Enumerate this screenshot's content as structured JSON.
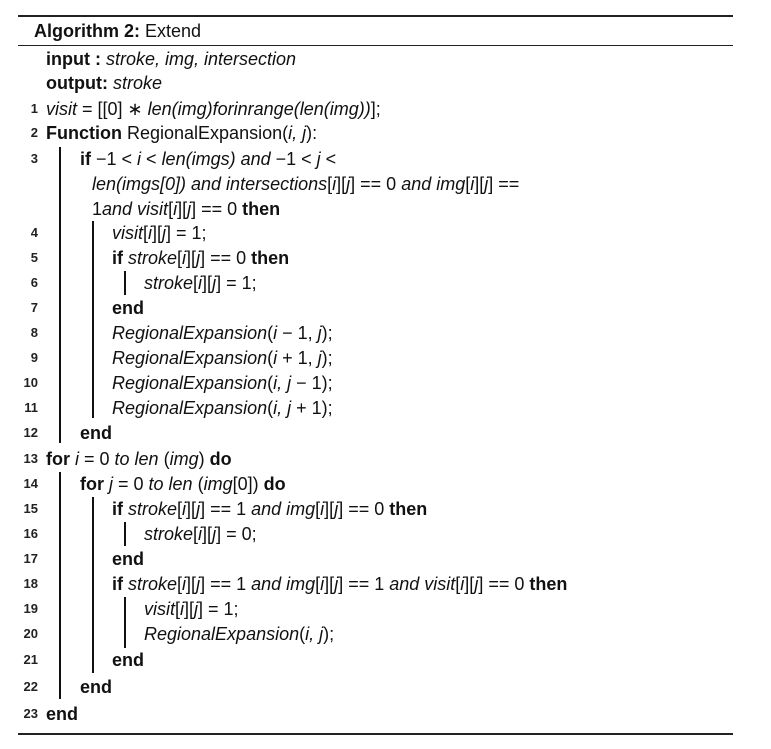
{
  "header": {
    "algorithm": "Algorithm 2:",
    "name": "Extend"
  },
  "io": {
    "input_kw": "input",
    "input_sep": " :",
    "input_val": "stroke, img, intersection",
    "output_kw": "output:",
    "output_val": "stroke"
  },
  "lines": [
    {
      "num": "1",
      "tokens": [
        [
          "i",
          "visit"
        ],
        [
          "n",
          " = [[0] ∗ "
        ],
        [
          "i",
          "len(img)for"
        ],
        [
          "i",
          "inrange(len(img))"
        ],
        [
          "n",
          "];"
        ]
      ]
    },
    {
      "num": "2",
      "tokens": [
        [
          "b",
          "Function "
        ],
        [
          "n",
          "RegionalExpansion("
        ],
        [
          "i",
          "i, j"
        ],
        [
          "n",
          "):"
        ]
      ]
    },
    {
      "num": "3",
      "tokens": [
        [
          "b",
          "if "
        ],
        [
          "n",
          "−1 < "
        ],
        [
          "i",
          "i"
        ],
        [
          "n",
          " < "
        ],
        [
          "i",
          "len(imgs) and "
        ],
        [
          "n",
          "−1 < "
        ],
        [
          "i",
          "j"
        ],
        [
          "n",
          " <"
        ]
      ]
    },
    {
      "num": "",
      "tokens": [
        [
          "i",
          "len(imgs[0]) and intersections"
        ],
        [
          "n",
          "["
        ],
        [
          "i",
          "i"
        ],
        [
          "n",
          "]["
        ],
        [
          "i",
          "j"
        ],
        [
          "n",
          "] == 0 "
        ],
        [
          "i",
          "and img"
        ],
        [
          "n",
          "["
        ],
        [
          "i",
          "i"
        ],
        [
          "n",
          "]["
        ],
        [
          "i",
          "j"
        ],
        [
          "n",
          "] =="
        ]
      ]
    },
    {
      "num": "",
      "tokens": [
        [
          "n",
          "1"
        ],
        [
          "i",
          "and visit"
        ],
        [
          "n",
          "["
        ],
        [
          "i",
          "i"
        ],
        [
          "n",
          "]["
        ],
        [
          "i",
          "j"
        ],
        [
          "n",
          "] == 0 "
        ],
        [
          "b",
          "then"
        ]
      ]
    },
    {
      "num": "4",
      "tokens": [
        [
          "i",
          "visit"
        ],
        [
          "n",
          "["
        ],
        [
          "i",
          "i"
        ],
        [
          "n",
          "]["
        ],
        [
          "i",
          "j"
        ],
        [
          "n",
          "] = 1;"
        ]
      ]
    },
    {
      "num": "5",
      "tokens": [
        [
          "b",
          "if "
        ],
        [
          "i",
          "stroke"
        ],
        [
          "n",
          "["
        ],
        [
          "i",
          "i"
        ],
        [
          "n",
          "]["
        ],
        [
          "i",
          "j"
        ],
        [
          "n",
          "] == 0 "
        ],
        [
          "b",
          "then"
        ]
      ]
    },
    {
      "num": "6",
      "tokens": [
        [
          "i",
          "stroke"
        ],
        [
          "n",
          "["
        ],
        [
          "i",
          "i"
        ],
        [
          "n",
          "]["
        ],
        [
          "i",
          "j"
        ],
        [
          "n",
          "] = 1;"
        ]
      ]
    },
    {
      "num": "7",
      "tokens": [
        [
          "b",
          "end"
        ]
      ]
    },
    {
      "num": "8",
      "tokens": [
        [
          "i",
          "RegionalExpansion"
        ],
        [
          "n",
          "("
        ],
        [
          "i",
          "i"
        ],
        [
          "n",
          " − 1, "
        ],
        [
          "i",
          "j"
        ],
        [
          "n",
          ");"
        ]
      ]
    },
    {
      "num": "9",
      "tokens": [
        [
          "i",
          "RegionalExpansion"
        ],
        [
          "n",
          "("
        ],
        [
          "i",
          "i"
        ],
        [
          "n",
          " + 1, "
        ],
        [
          "i",
          "j"
        ],
        [
          "n",
          ");"
        ]
      ]
    },
    {
      "num": "10",
      "tokens": [
        [
          "i",
          "RegionalExpansion"
        ],
        [
          "n",
          "("
        ],
        [
          "i",
          "i, j"
        ],
        [
          "n",
          " − 1);"
        ]
      ]
    },
    {
      "num": "11",
      "tokens": [
        [
          "i",
          "RegionalExpansion"
        ],
        [
          "n",
          "("
        ],
        [
          "i",
          "i, j"
        ],
        [
          "n",
          " + 1);"
        ]
      ]
    },
    {
      "num": "12",
      "tokens": [
        [
          "b",
          "end"
        ]
      ]
    },
    {
      "num": "13",
      "tokens": [
        [
          "b",
          "for "
        ],
        [
          "i",
          " i"
        ],
        [
          "n",
          " = 0 "
        ],
        [
          "i",
          "to len"
        ],
        [
          "n",
          " ("
        ],
        [
          "i",
          "img"
        ],
        [
          "n",
          ") "
        ],
        [
          "b",
          "do"
        ]
      ]
    },
    {
      "num": "14",
      "tokens": [
        [
          "b",
          "for "
        ],
        [
          "i",
          "j"
        ],
        [
          "n",
          " = 0 "
        ],
        [
          "i",
          "to len"
        ],
        [
          "n",
          " ("
        ],
        [
          "i",
          "img"
        ],
        [
          "n",
          "[0]) "
        ],
        [
          "b",
          "do"
        ]
      ]
    },
    {
      "num": "15",
      "tokens": [
        [
          "b",
          "if "
        ],
        [
          "i",
          "stroke"
        ],
        [
          "n",
          "["
        ],
        [
          "i",
          "i"
        ],
        [
          "n",
          "]["
        ],
        [
          "i",
          "j"
        ],
        [
          "n",
          "] == 1 "
        ],
        [
          "i",
          "and img"
        ],
        [
          "n",
          "["
        ],
        [
          "i",
          "i"
        ],
        [
          "n",
          "]["
        ],
        [
          "i",
          "j"
        ],
        [
          "n",
          "] == 0 "
        ],
        [
          "b",
          "then"
        ]
      ]
    },
    {
      "num": "16",
      "tokens": [
        [
          "i",
          "stroke"
        ],
        [
          "n",
          "["
        ],
        [
          "i",
          "i"
        ],
        [
          "n",
          "]["
        ],
        [
          "i",
          "j"
        ],
        [
          "n",
          "] = 0;"
        ]
      ]
    },
    {
      "num": "17",
      "tokens": [
        [
          "b",
          "end"
        ]
      ]
    },
    {
      "num": "18",
      "tokens": [
        [
          "b",
          "if "
        ],
        [
          "i",
          "stroke"
        ],
        [
          "n",
          "["
        ],
        [
          "i",
          "i"
        ],
        [
          "n",
          "]["
        ],
        [
          "i",
          "j"
        ],
        [
          "n",
          "] == 1 "
        ],
        [
          "i",
          "and img"
        ],
        [
          "n",
          "["
        ],
        [
          "i",
          "i"
        ],
        [
          "n",
          "]["
        ],
        [
          "i",
          "j"
        ],
        [
          "n",
          "] == 1 "
        ],
        [
          "i",
          "and visit"
        ],
        [
          "n",
          "["
        ],
        [
          "i",
          "i"
        ],
        [
          "n",
          "]["
        ],
        [
          "i",
          "j"
        ],
        [
          "n",
          "] == 0 "
        ],
        [
          "b",
          "then"
        ]
      ]
    },
    {
      "num": "19",
      "tokens": [
        [
          "i",
          "visit"
        ],
        [
          "n",
          "["
        ],
        [
          "i",
          "i"
        ],
        [
          "n",
          "]["
        ],
        [
          "i",
          "j"
        ],
        [
          "n",
          "] = 1;"
        ]
      ]
    },
    {
      "num": "20",
      "tokens": [
        [
          "i",
          "RegionalExpansion"
        ],
        [
          "n",
          "("
        ],
        [
          "i",
          "i, j"
        ],
        [
          "n",
          ");"
        ]
      ]
    },
    {
      "num": "21",
      "tokens": [
        [
          "b",
          "end"
        ]
      ]
    },
    {
      "num": "22",
      "tokens": [
        [
          "b",
          "end"
        ]
      ]
    },
    {
      "num": "23",
      "tokens": [
        [
          "b",
          "end"
        ]
      ]
    }
  ]
}
